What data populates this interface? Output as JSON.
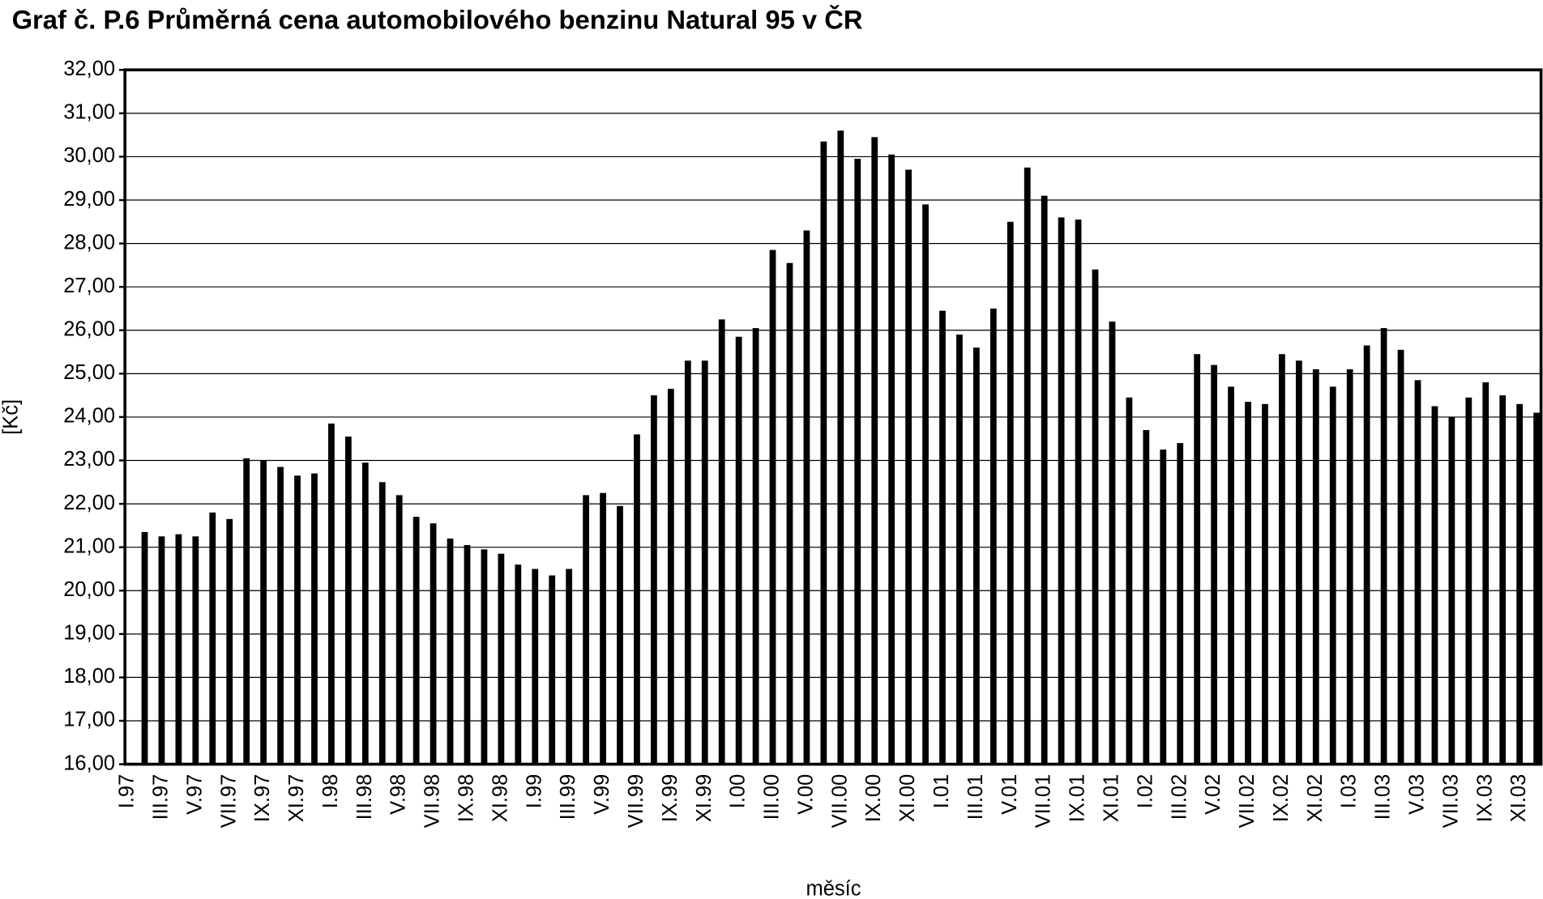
{
  "chart_data": {
    "type": "bar",
    "title": "Graf č. P.6 Průměrná cena automobilového benzinu Natural 95 v ČR",
    "y_label": "[Kč]",
    "x_label": "měsíc",
    "color": "#000000",
    "grid": true,
    "categories": [
      "I.97",
      null,
      "III.97",
      null,
      "V.97",
      null,
      "VII.97",
      null,
      "IX.97",
      null,
      "XI.97",
      null,
      "I.98",
      null,
      "III.98",
      null,
      "V.98",
      null,
      "VII.98",
      null,
      "IX.98",
      null,
      "XI.98",
      null,
      "I.99",
      null,
      "III.99",
      null,
      "V.99",
      null,
      "VII.99",
      null,
      "IX.99",
      null,
      "XI.99",
      null,
      "I.00",
      null,
      "III.00",
      null,
      "V.00",
      null,
      "VII.00",
      null,
      "IX.00",
      null,
      "XI.00",
      null,
      "I.01",
      null,
      "III.01",
      null,
      "V.01",
      null,
      "VII.01",
      null,
      "IX.01",
      null,
      "XI.01",
      null,
      "I.02",
      null,
      "III.02",
      null,
      "V.02",
      null,
      "VII.02",
      null,
      "IX.02",
      null,
      "XI.02",
      null,
      "I.03",
      null,
      "III.03",
      null,
      "V.03",
      null,
      "VII.03",
      null,
      "IX.03",
      null,
      "XI.03"
    ],
    "values": [
      21.35,
      21.25,
      21.3,
      21.25,
      21.8,
      21.65,
      23.05,
      23.0,
      22.85,
      22.65,
      22.7,
      23.85,
      23.55,
      22.95,
      22.5,
      22.2,
      21.7,
      21.55,
      21.2,
      21.05,
      20.95,
      20.85,
      20.6,
      20.5,
      20.35,
      20.5,
      22.2,
      22.25,
      21.95,
      23.6,
      24.5,
      24.65,
      25.3,
      25.3,
      26.25,
      25.85,
      26.05,
      27.85,
      27.55,
      28.3,
      30.35,
      30.6,
      29.95,
      30.45,
      30.05,
      29.7,
      28.9,
      26.45,
      25.9,
      25.6,
      26.5,
      28.5,
      29.75,
      29.1,
      28.6,
      28.55,
      27.4,
      26.2,
      24.45,
      23.7,
      23.25,
      23.4,
      25.45,
      25.2,
      24.7,
      24.35,
      24.3,
      25.45,
      25.3,
      25.1,
      24.7,
      25.1,
      25.65,
      26.05,
      25.55,
      24.85,
      24.25,
      24.0,
      24.45,
      24.8,
      24.5,
      24.3,
      24.1
    ],
    "ylim": [
      16,
      32
    ],
    "yticks": [
      {
        "value": 16,
        "label": "16,00"
      },
      {
        "value": 17,
        "label": "17,00"
      },
      {
        "value": 18,
        "label": "18,00"
      },
      {
        "value": 19,
        "label": "19,00"
      },
      {
        "value": 20,
        "label": "20,00"
      },
      {
        "value": 21,
        "label": "21,00"
      },
      {
        "value": 22,
        "label": "22,00"
      },
      {
        "value": 23,
        "label": "23,00"
      },
      {
        "value": 24,
        "label": "24,00"
      },
      {
        "value": 25,
        "label": "25,00"
      },
      {
        "value": 26,
        "label": "26,00"
      },
      {
        "value": 27,
        "label": "27,00"
      },
      {
        "value": 28,
        "label": "28,00"
      },
      {
        "value": 29,
        "label": "29,00"
      },
      {
        "value": 30,
        "label": "30,00"
      },
      {
        "value": 31,
        "label": "31,00"
      },
      {
        "value": 32,
        "label": "32,00"
      }
    ]
  }
}
